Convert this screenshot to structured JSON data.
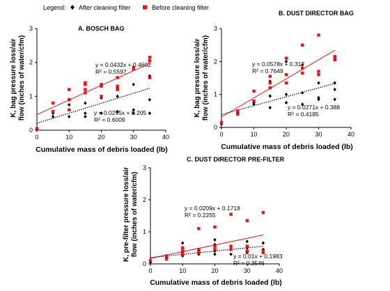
{
  "legend": {
    "label": "Legend:",
    "items": [
      {
        "name": "After cleaning filter",
        "marker": "diamond",
        "color": "#000000"
      },
      {
        "name": "Before cleaning filter",
        "marker": "square",
        "color": "#e8141a"
      }
    ]
  },
  "colors": {
    "after": "#000000",
    "before": "#e8141a",
    "trend_before": "#e8141a",
    "trend_after": "#000000"
  },
  "chart_data": [
    {
      "id": "A",
      "type": "scatter",
      "title": "A. BOSCH BAG",
      "xlabel": "Cumulative mass of debris loaded (lb)",
      "ylabel": [
        "K, bag pressure loss/air",
        "flow (inches of water/cfm)"
      ],
      "xlim": [
        0,
        40
      ],
      "ylim": [
        0,
        3
      ],
      "xticks": [
        0,
        10,
        20,
        30,
        40
      ],
      "yticks": [
        0,
        1,
        2,
        3
      ],
      "series": [
        {
          "name": "After cleaning filter",
          "x": [
            0,
            5,
            5,
            10,
            10,
            15,
            15,
            15,
            20,
            20,
            20,
            25,
            25,
            25,
            30,
            30,
            30,
            35,
            35,
            35
          ],
          "y": [
            0.03,
            0.5,
            0.4,
            0.75,
            0.4,
            0.8,
            0.5,
            0.4,
            1.0,
            0.95,
            0.5,
            1.25,
            1.0,
            0.55,
            1.35,
            0.6,
            0.5,
            1.6,
            0.9,
            0.5
          ]
        },
        {
          "name": "Before cleaning filter",
          "x": [
            0,
            5,
            5,
            10,
            10,
            10,
            15,
            15,
            15,
            15,
            20,
            20,
            20,
            25,
            25,
            25,
            30,
            30,
            35,
            35,
            35
          ],
          "y": [
            0.05,
            0.8,
            0.55,
            1.2,
            0.9,
            0.6,
            1.4,
            1.35,
            1.2,
            1.1,
            1.35,
            1.3,
            1.0,
            1.55,
            1.3,
            1.2,
            1.85,
            1.8,
            2.15,
            2.05,
            1.55
          ]
        }
      ],
      "trendlines": [
        {
          "series": "Before cleaning filter",
          "slope": 0.0432,
          "intercept": 0.4602,
          "equation": "y = 0.0432x + 0.4602",
          "r2": "R² = 0.5597"
        },
        {
          "series": "After cleaning filter",
          "slope": 0.0295,
          "intercept": 0.205,
          "equation": "y = 0.0295x + 0.205",
          "r2": "R² = 0.6009"
        }
      ]
    },
    {
      "id": "B",
      "type": "scatter",
      "title": "B. DUST DIRECTOR BAG",
      "xlabel": "Cumulative mass of debris loaded (lb)",
      "ylabel": [
        "K, bag pressure loss/air",
        "flow (inches of water/cfm)"
      ],
      "xlim": [
        0,
        40
      ],
      "ylim": [
        0,
        3
      ],
      "xticks": [
        0,
        10,
        20,
        30,
        40
      ],
      "yticks": [
        0,
        1,
        2,
        3
      ],
      "series": [
        {
          "name": "After cleaning filter",
          "x": [
            0,
            5,
            5,
            10,
            10,
            15,
            15,
            15,
            20,
            20,
            20,
            25,
            25,
            25,
            30,
            30,
            30,
            35,
            35,
            35
          ],
          "y": [
            0.1,
            0.5,
            0.45,
            0.75,
            0.7,
            1.4,
            0.95,
            0.6,
            2.0,
            1.0,
            0.75,
            1.9,
            1.05,
            0.7,
            1.35,
            0.9,
            0.85,
            1.35,
            1.15,
            0.85
          ]
        },
        {
          "name": "Before cleaning filter",
          "x": [
            0,
            5,
            5,
            10,
            10,
            15,
            15,
            15,
            20,
            20,
            20,
            25,
            25,
            25,
            30,
            30,
            30,
            35,
            35,
            35
          ],
          "y": [
            0.15,
            0.5,
            0.4,
            1.1,
            0.8,
            1.55,
            1.35,
            1.2,
            2.1,
            1.6,
            1.35,
            2.5,
            1.8,
            1.65,
            2.8,
            1.7,
            1.6,
            2.15,
            2.1,
            2.05
          ]
        }
      ],
      "trendlines": [
        {
          "series": "Before cleaning filter",
          "slope": 0.0578,
          "intercept": 0.317,
          "equation": "y = 0.0578x + 0.317",
          "r2": "R² = 0.7649"
        },
        {
          "series": "After cleaning filter",
          "slope": 0.0271,
          "intercept": 0.388,
          "equation": "y = 0.0271x + 0.388",
          "r2": "R² = 0.4185"
        }
      ]
    },
    {
      "id": "C",
      "type": "scatter",
      "title": "C. DUST DIRECTOR PRE-FILTER",
      "xlabel": "Cumulative mass of debris loaded (lb)",
      "ylabel": [
        "K, pre-filter pressure loss/air",
        "flow (inches of water/cfm)"
      ],
      "xlim": [
        0,
        40
      ],
      "ylim": [
        0,
        3
      ],
      "xticks": [
        0,
        10,
        20,
        30,
        40
      ],
      "yticks": [
        0,
        1,
        2,
        3
      ],
      "series": [
        {
          "name": "After cleaning filter",
          "x": [
            0,
            5,
            5,
            10,
            10,
            10,
            10,
            15,
            15,
            15,
            20,
            20,
            20,
            20,
            25,
            25,
            25,
            30,
            30,
            30,
            35,
            35,
            35
          ],
          "y": [
            0.05,
            0.2,
            0.15,
            0.65,
            0.5,
            0.35,
            0.25,
            0.45,
            0.4,
            0.3,
            0.75,
            0.6,
            0.4,
            0.3,
            0.55,
            0.45,
            0.3,
            0.7,
            0.5,
            0.35,
            0.65,
            0.45,
            0.35
          ]
        },
        {
          "name": "Before cleaning filter",
          "x": [
            0,
            5,
            5,
            10,
            10,
            10,
            15,
            15,
            15,
            20,
            20,
            20,
            25,
            25,
            25,
            30,
            30,
            30,
            35,
            35,
            35
          ],
          "y": [
            0.1,
            0.25,
            0.15,
            0.5,
            0.4,
            0.3,
            1.1,
            0.45,
            0.35,
            1.15,
            0.55,
            0.45,
            1.55,
            0.55,
            0.45,
            1.35,
            0.55,
            0.4,
            1.6,
            0.4,
            0.35
          ]
        }
      ],
      "trendlines": [
        {
          "series": "Before cleaning filter",
          "slope": 0.0209,
          "intercept": 0.1718,
          "equation": "y = 0.0209x + 0.1718",
          "r2": "R² = 0.2255"
        },
        {
          "series": "After cleaning filter",
          "slope": 0.01,
          "intercept": 0.1983,
          "equation": "y = 0.01x + 0.1983",
          "r2": "R² = 0.3546"
        }
      ]
    }
  ]
}
